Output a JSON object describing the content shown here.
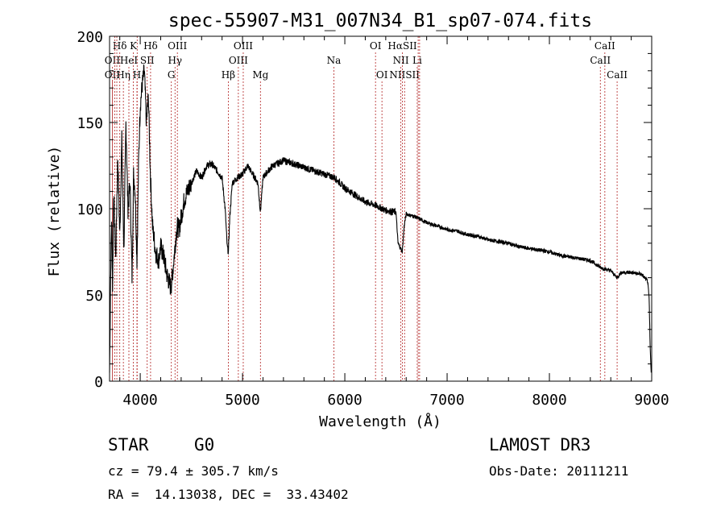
{
  "chart_data": {
    "type": "line",
    "title": "spec-55907-M31_007N34_B1_sp07-074.fits",
    "xlabel": "Wavelength (Å)",
    "ylabel": "Flux (relative)",
    "xlim": [
      3700,
      9000
    ],
    "ylim": [
      0,
      200
    ],
    "x_ticks": [
      4000,
      5000,
      6000,
      7000,
      8000,
      9000
    ],
    "y_ticks": [
      0,
      50,
      100,
      150,
      200
    ],
    "grid": false,
    "series": [
      {
        "name": "flux",
        "x": [
          3700,
          3710,
          3720,
          3730,
          3740,
          3760,
          3780,
          3800,
          3820,
          3840,
          3860,
          3880,
          3900,
          3920,
          3935,
          3950,
          3968,
          3985,
          4000,
          4020,
          4040,
          4060,
          4080,
          4100,
          4120,
          4150,
          4180,
          4200,
          4230,
          4260,
          4280,
          4300,
          4320,
          4340,
          4360,
          4380,
          4400,
          4430,
          4460,
          4500,
          4550,
          4600,
          4650,
          4700,
          4750,
          4800,
          4830,
          4850,
          4862,
          4875,
          4900,
          4950,
          5000,
          5050,
          5100,
          5150,
          5175,
          5200,
          5250,
          5300,
          5400,
          5500,
          5600,
          5700,
          5800,
          5900,
          6000,
          6100,
          6200,
          6300,
          6400,
          6500,
          6520,
          6562,
          6580,
          6600,
          6700,
          6800,
          6900,
          7000,
          7100,
          7200,
          7300,
          7400,
          7500,
          7600,
          7700,
          7800,
          7900,
          8000,
          8100,
          8200,
          8300,
          8400,
          8498,
          8542,
          8600,
          8662,
          8700,
          8800,
          8900,
          8960,
          8975,
          8985,
          8995
        ],
        "values": [
          5,
          60,
          95,
          55,
          110,
          70,
          130,
          85,
          140,
          75,
          150,
          100,
          115,
          60,
          120,
          110,
          70,
          130,
          160,
          172,
          180,
          150,
          165,
          118,
          90,
          75,
          70,
          78,
          72,
          62,
          58,
          54,
          65,
          78,
          90,
          88,
          95,
          105,
          110,
          115,
          122,
          118,
          125,
          126,
          122,
          118,
          100,
          78,
          75,
          95,
          115,
          118,
          120,
          125,
          120,
          115,
          98,
          118,
          122,
          125,
          128,
          126,
          124,
          122,
          120,
          118,
          112,
          108,
          104,
          102,
          99,
          98,
          80,
          75,
          90,
          97,
          95,
          92,
          90,
          88,
          87,
          85,
          84,
          82,
          81,
          80,
          78,
          77,
          76,
          75,
          73,
          72,
          71,
          70,
          66,
          65,
          64,
          60,
          63,
          63,
          62,
          58,
          48,
          20,
          5
        ]
      }
    ],
    "line_markers": [
      {
        "label": "Hδ",
        "x": 3800,
        "row": 0
      },
      {
        "label": "K",
        "x": 3933,
        "row": 0
      },
      {
        "label": "Hδ",
        "x": 4101,
        "row": 0
      },
      {
        "label": "OIII",
        "x": 4363,
        "row": 0
      },
      {
        "label": "OIII",
        "x": 5007,
        "row": 0
      },
      {
        "label": "OI",
        "x": 6300,
        "row": 0
      },
      {
        "label": "HαSII",
        "x": 6563,
        "row": 0
      },
      {
        "label": "CaII",
        "x": 8542,
        "row": 0
      },
      {
        "label": "OII",
        "x": 3727,
        "row": 1
      },
      {
        "label": "HeI",
        "x": 3889,
        "row": 1
      },
      {
        "label": "SII",
        "x": 4068,
        "row": 1
      },
      {
        "label": "Hγ",
        "x": 4340,
        "row": 1
      },
      {
        "label": "OIII",
        "x": 4959,
        "row": 1
      },
      {
        "label": "Na",
        "x": 5893,
        "row": 1
      },
      {
        "label": "NII",
        "x": 6548,
        "row": 1
      },
      {
        "label": "Li",
        "x": 6708,
        "row": 1
      },
      {
        "label": "CaII",
        "x": 8498,
        "row": 1
      },
      {
        "label": "OII",
        "x": 3727,
        "row": 2
      },
      {
        "label": "Hη",
        "x": 3835,
        "row": 2
      },
      {
        "label": "H",
        "x": 3968,
        "row": 2
      },
      {
        "label": "G",
        "x": 4304,
        "row": 2
      },
      {
        "label": "Hβ",
        "x": 4861,
        "row": 2
      },
      {
        "label": "Mg",
        "x": 5175,
        "row": 2
      },
      {
        "label": "OI",
        "x": 6363,
        "row": 2
      },
      {
        "label": "NIISII",
        "x": 6584,
        "row": 2
      },
      {
        "label": "CaII",
        "x": 8662,
        "row": 2
      }
    ],
    "extra_marker_lines": [
      3750,
      3771,
      3970,
      6717,
      6731
    ]
  },
  "info": {
    "object_class": "STAR",
    "subclass": "G0",
    "survey": "LAMOST DR3",
    "redshift": "cz = 79.4 ± 305.7 km/s",
    "obs_date": "Obs-Date: 20111211",
    "coords": "RA =  14.13038, DEC =  33.43402"
  },
  "colors": {
    "line": "#000000",
    "marker": "#b22222",
    "axis": "#000000"
  }
}
